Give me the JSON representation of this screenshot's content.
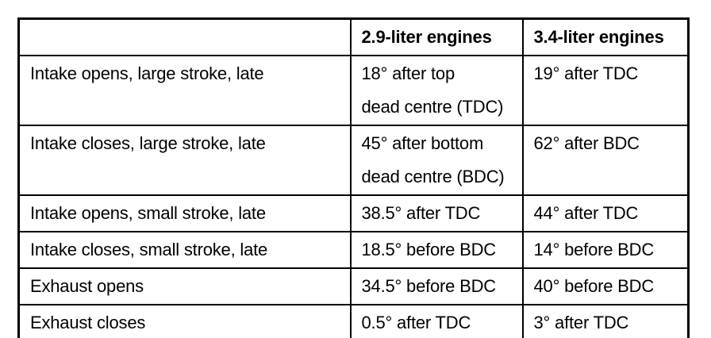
{
  "table": {
    "title_semantic": "engine-valve-timing-comparison",
    "border_color": "#000000",
    "text_color": "#000000",
    "background_color": "#ffffff",
    "columns": {
      "label": "",
      "engine29": "2.9-liter engines",
      "engine34": "3.4-liter engines"
    },
    "rows": [
      {
        "label": "Intake opens, large stroke, late",
        "v29": "18° after top\ndead centre (TDC)",
        "v34": "19° after TDC"
      },
      {
        "label": "Intake closes, large stroke, late",
        "v29": "45° after bottom\ndead centre (BDC)",
        "v34": "62° after BDC"
      },
      {
        "label": "Intake opens, small stroke, late",
        "v29": "38.5° after TDC",
        "v34": "44° after TDC"
      },
      {
        "label": "Intake closes, small stroke, late",
        "v29": "18.5° before BDC",
        "v34": "14° before BDC"
      },
      {
        "label": "Exhaust opens",
        "v29": "34.5° before BDC",
        "v34": "40° before BDC"
      },
      {
        "label": "Exhaust closes",
        "v29": "0.5° after TDC",
        "v34": "3° after TDC"
      }
    ]
  }
}
